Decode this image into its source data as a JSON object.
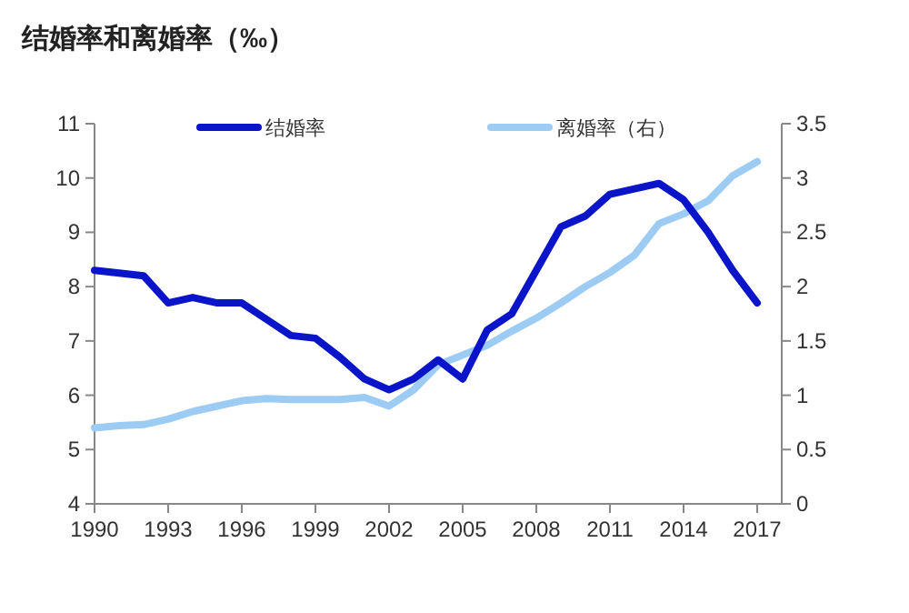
{
  "chart_data": {
    "type": "line",
    "title": "结婚率和离婚率（‰）",
    "x": [
      1990,
      1991,
      1992,
      1993,
      1994,
      1995,
      1996,
      1997,
      1998,
      1999,
      2000,
      2001,
      2002,
      2003,
      2004,
      2005,
      2006,
      2007,
      2008,
      2009,
      2010,
      2011,
      2012,
      2013,
      2014,
      2015,
      2016,
      2017
    ],
    "series": [
      {
        "name": "结婚率",
        "color": "#0a14c8",
        "values": [
          8.3,
          8.25,
          8.2,
          7.7,
          7.8,
          7.7,
          7.7,
          7.4,
          7.1,
          7.05,
          6.7,
          6.3,
          6.1,
          6.3,
          6.65,
          6.3,
          7.2,
          7.5,
          8.3,
          9.1,
          9.3,
          9.7,
          9.8,
          9.9,
          9.6,
          9.0,
          8.3,
          7.7
        ]
      },
      {
        "name": "离婚率（右）",
        "color": "#9ccbf3",
        "axis": "y2",
        "values": [
          0.7,
          0.72,
          0.73,
          0.78,
          0.85,
          0.9,
          0.95,
          0.97,
          0.96,
          0.96,
          0.96,
          0.98,
          0.9,
          1.05,
          1.28,
          1.37,
          1.46,
          1.59,
          1.71,
          1.85,
          2.0,
          2.13,
          2.29,
          2.58,
          2.67,
          2.79,
          3.02,
          3.15
        ]
      }
    ],
    "xlim": [
      1990,
      2018
    ],
    "xticks": [
      1990,
      1993,
      1996,
      1999,
      2002,
      2005,
      2008,
      2011,
      2014,
      2017
    ],
    "ylim": [
      4,
      11
    ],
    "yticks": [
      4,
      5,
      6,
      7,
      8,
      9,
      10,
      11
    ],
    "y2lim": [
      0,
      3.5
    ],
    "y2ticks": [
      0,
      0.5,
      1,
      1.5,
      2,
      2.5,
      3,
      3.5
    ],
    "legend": "top",
    "grid": false
  }
}
